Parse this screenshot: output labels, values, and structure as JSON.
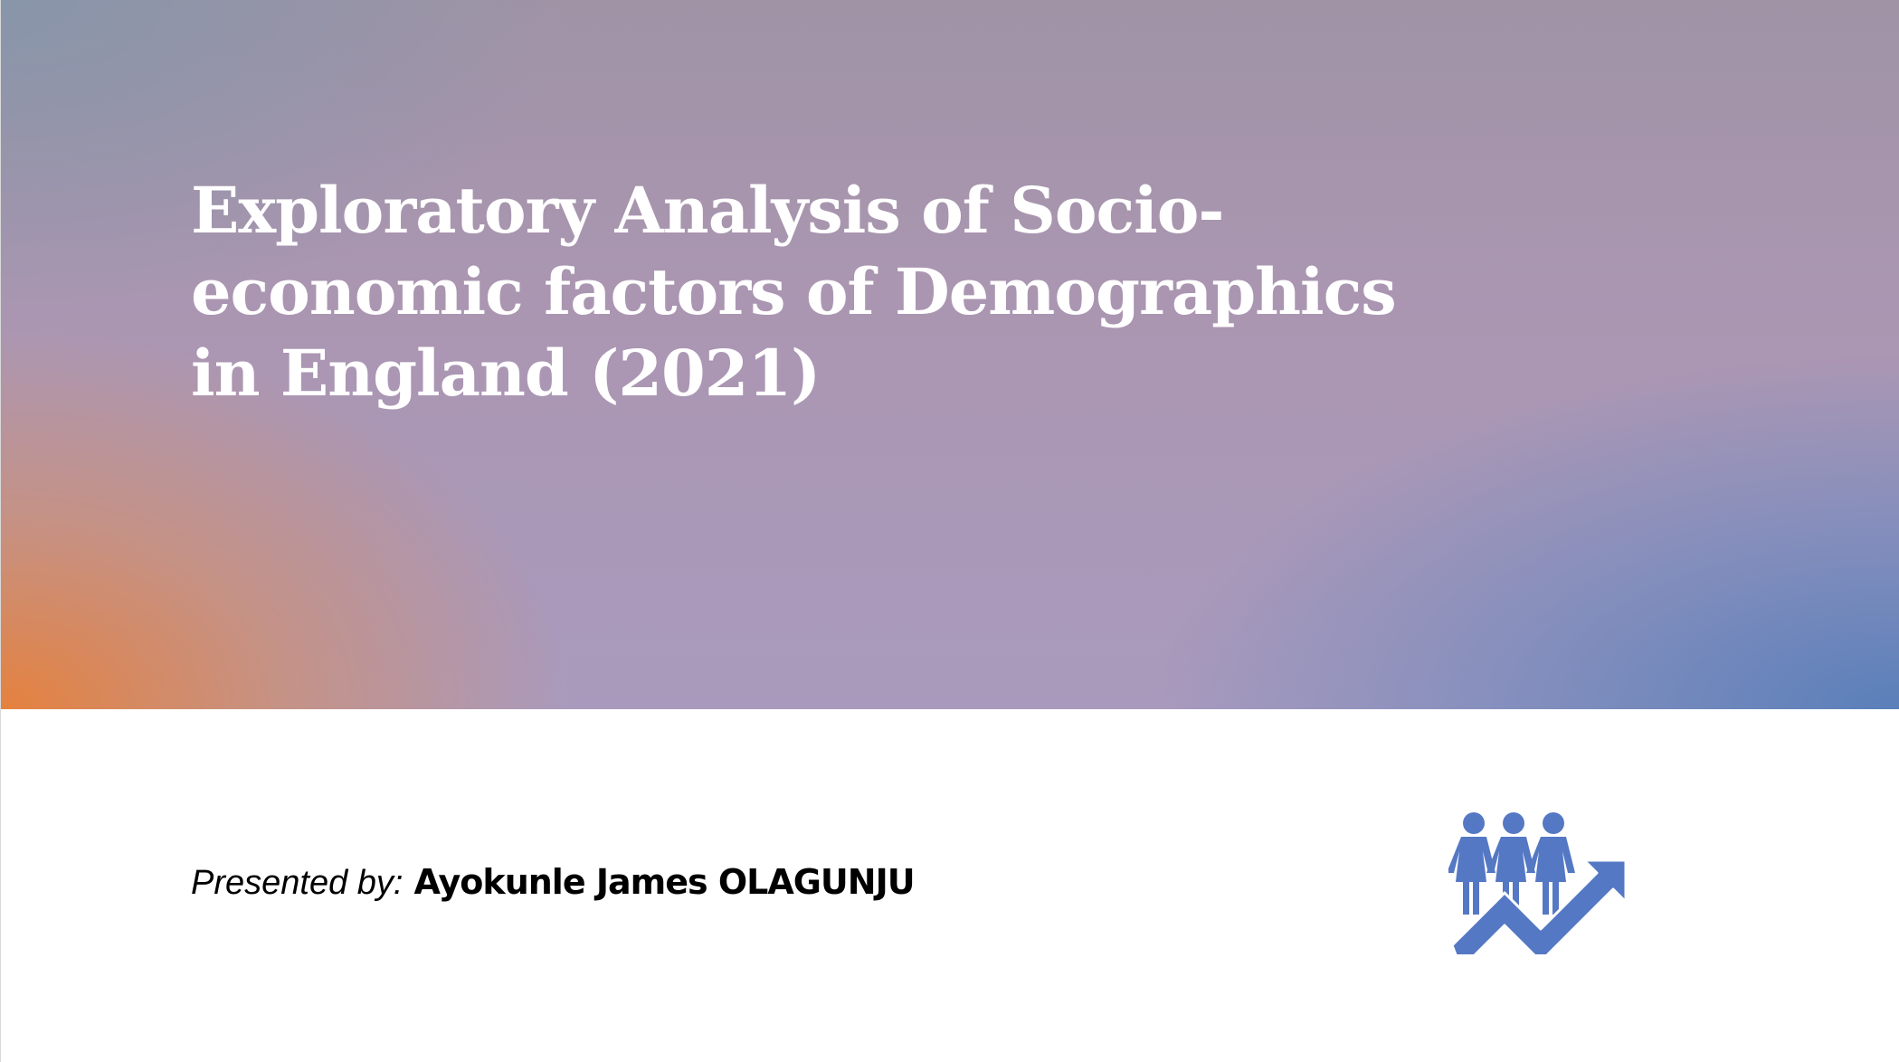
{
  "slide": {
    "title": "Exploratory Analysis of Socio-economic factors of Demographics in England (2021)",
    "presenter_label": "Presented by:",
    "presenter_name": "Ayokunle James OLAGUNJU",
    "icon": "people-growth-icon",
    "icon_color": "#5578c4",
    "hero_colors": [
      "#e8823a",
      "#a99abd",
      "#567eba"
    ]
  }
}
